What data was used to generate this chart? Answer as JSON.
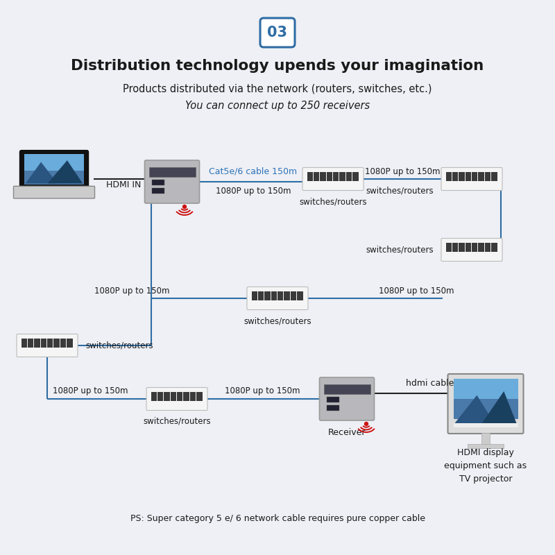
{
  "bg_color": "#eef0f5",
  "title": "Distribution technology upends your imagination",
  "subtitle1": "Products distributed via the network (routers, switches, etc.)",
  "subtitle2": "You can connect up to 250 receivers",
  "badge_text": "03",
  "line_color": "#2e6da4",
  "text_color": "#1a1a1a",
  "blue_text_color": "#2e72b8",
  "label_1080p": "1080P up to 150m",
  "label_switches": "switches/routers",
  "label_hdmi_in": "HDMI IN",
  "label_cat5e": "Cat5e/6 cable 150m",
  "label_hdmi_cable": "hdmi cable",
  "label_receiver": "Receiver",
  "label_hdmi_display": "HDMI display\nequipment such as\nTV projector",
  "label_ps": "PS: Super category 5 e/ 6 network cable requires pure copper cable"
}
